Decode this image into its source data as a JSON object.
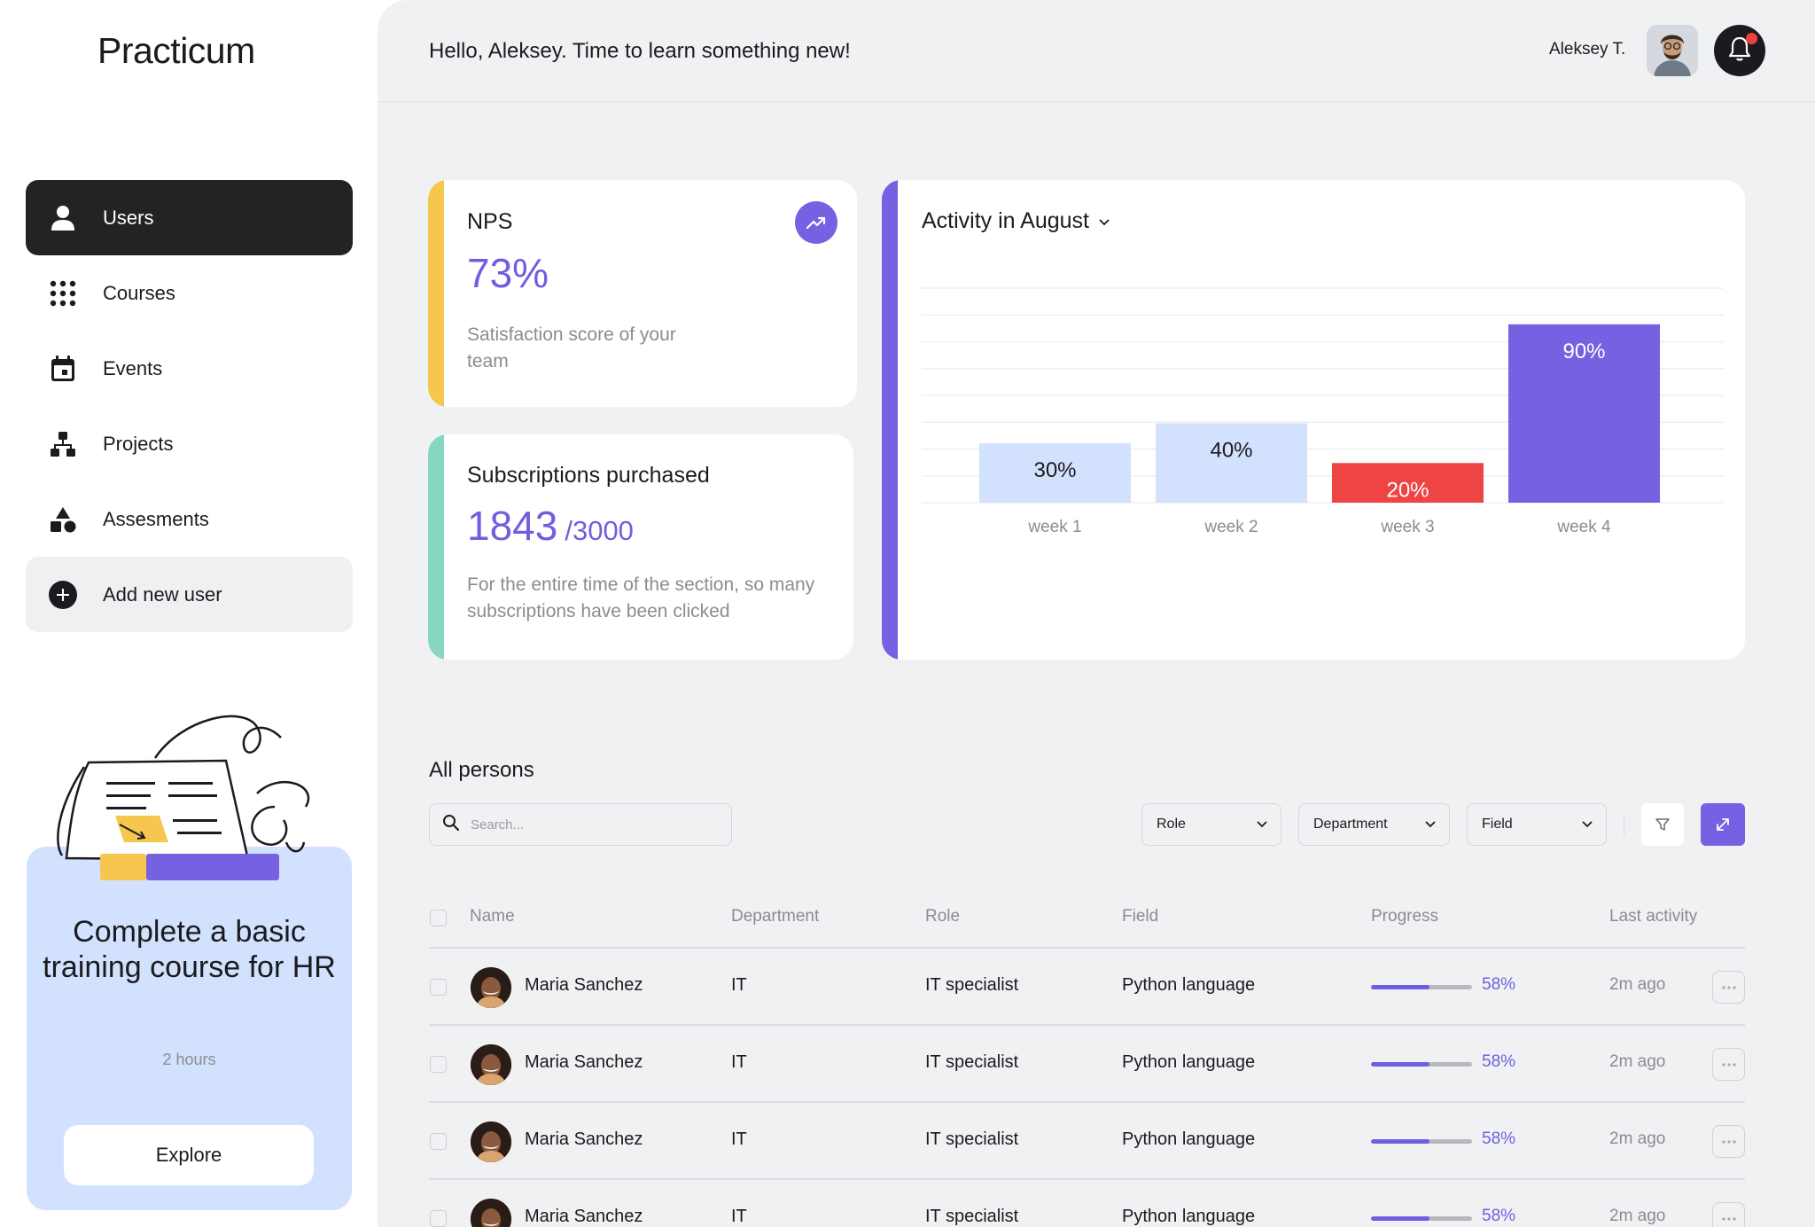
{
  "app": {
    "logo": "Practicum"
  },
  "sidebar": {
    "items": [
      {
        "label": "Users",
        "icon": "user-icon",
        "active": true
      },
      {
        "label": "Courses",
        "icon": "grid-dots-icon"
      },
      {
        "label": "Events",
        "icon": "calendar-icon"
      },
      {
        "label": "Projects",
        "icon": "hierarchy-icon"
      },
      {
        "label": "Assesments",
        "icon": "shapes-icon"
      },
      {
        "label": "Add new user",
        "icon": "plus-circle-icon"
      }
    ],
    "promo": {
      "title": "Complete a basic training course for HR",
      "duration": "2 hours",
      "button": "Explore"
    }
  },
  "header": {
    "greeting": "Hello, Aleksey. Time to learn something new!",
    "user_name": "Aleksey T."
  },
  "nps": {
    "label": "NPS",
    "value": "73%",
    "description": "Satisfaction score of your team",
    "accent": "#f6c64e"
  },
  "subscriptions": {
    "label": "Subscriptions purchased",
    "value": "1843",
    "total": "/3000",
    "description": "For the entire time of the section, so many subscriptions have been clicked",
    "accent": "#87d6c2"
  },
  "activity": {
    "title": "Activity in August",
    "accent": "#7561e2"
  },
  "chart_data": {
    "type": "bar",
    "title": "Activity in August",
    "categories": [
      "week 1",
      "week 2",
      "week 3",
      "week 4"
    ],
    "values": [
      30,
      40,
      20,
      90
    ],
    "data_labels": [
      "30%",
      "40%",
      "20%",
      "90%"
    ],
    "colors": [
      "#d2e1fd",
      "#d2e1fd",
      "#ef4444",
      "#7561e2"
    ],
    "ylim": [
      0,
      100
    ],
    "grid": true
  },
  "persons": {
    "title": "All persons",
    "search_placeholder": "Search...",
    "filters": [
      "Role",
      "Department",
      "Field"
    ],
    "columns": [
      "Name",
      "Department",
      "Role",
      "Field",
      "Progress",
      "Last activity"
    ],
    "rows": [
      {
        "name": "Maria Sanchez",
        "department": "IT",
        "role": "IT specialist",
        "field": "Python language",
        "progress": 58,
        "progress_label": "58%",
        "last_activity": "2m ago"
      },
      {
        "name": "Maria Sanchez",
        "department": "IT",
        "role": "IT specialist",
        "field": "Python language",
        "progress": 58,
        "progress_label": "58%",
        "last_activity": "2m ago"
      },
      {
        "name": "Maria Sanchez",
        "department": "IT",
        "role": "IT specialist",
        "field": "Python language",
        "progress": 58,
        "progress_label": "58%",
        "last_activity": "2m ago"
      },
      {
        "name": "Maria Sanchez",
        "department": "IT",
        "role": "IT specialist",
        "field": "Python language",
        "progress": 58,
        "progress_label": "58%",
        "last_activity": "2m ago"
      }
    ]
  }
}
